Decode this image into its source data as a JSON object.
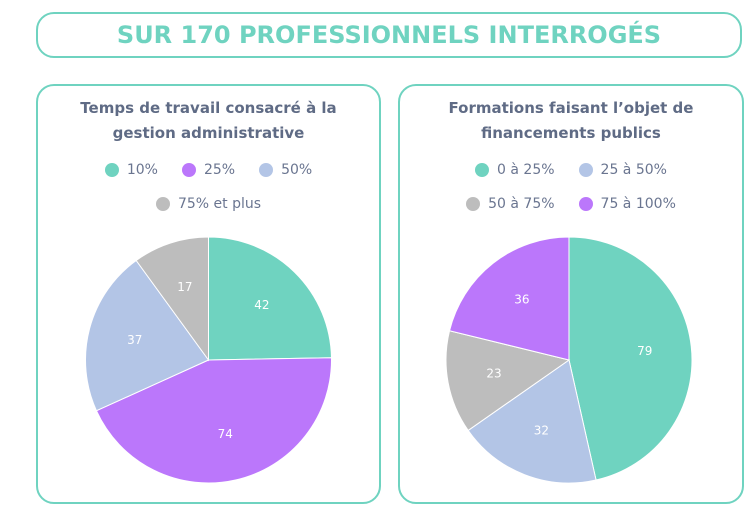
{
  "header": {
    "title": "SUR 170 PROFESSIONNELS INTERROGÉS"
  },
  "colors": {
    "accent": "#6fd3c0",
    "text": "#5f6b85"
  },
  "chart_data": [
    {
      "type": "pie",
      "title": "Temps de travail consacré à la gestion administrative",
      "slices": [
        {
          "label": "10%",
          "value": 42,
          "color": "#6fd3c0"
        },
        {
          "label": "25%",
          "value": 74,
          "color": "#bb77fb"
        },
        {
          "label": "50%",
          "value": 37,
          "color": "#b3c5e6"
        },
        {
          "label": "75% et plus",
          "value": 17,
          "color": "#bdbdbd"
        }
      ],
      "legend_position": "top"
    },
    {
      "type": "pie",
      "title": "Formations faisant l’objet de financements publics",
      "slices": [
        {
          "label": "0 à 25%",
          "value": 79,
          "color": "#6fd3c0"
        },
        {
          "label": "25 à 50%",
          "value": 32,
          "color": "#b3c5e6"
        },
        {
          "label": "50 à 75%",
          "value": 23,
          "color": "#bdbdbd"
        },
        {
          "label": "75 à 100%",
          "value": 36,
          "color": "#bb77fb"
        }
      ],
      "legend_position": "top"
    }
  ]
}
